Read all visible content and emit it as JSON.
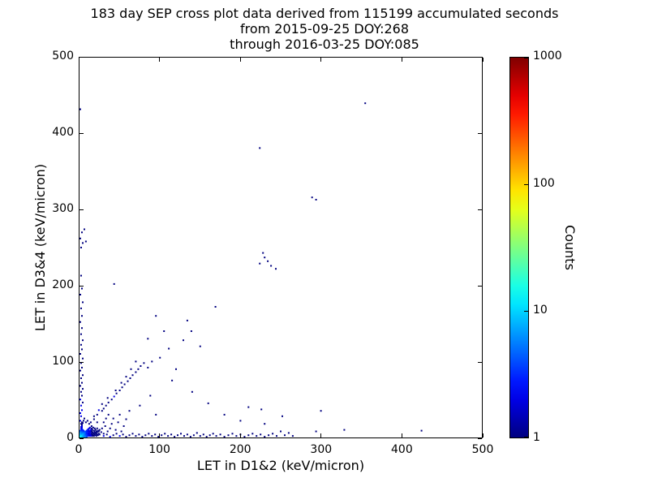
{
  "figure": {
    "title_lines": [
      "183 day SEP cross plot data derived from 115199 accumulated seconds",
      "from 2015-09-25 DOY:268",
      "through 2016-03-25 DOY:085"
    ]
  },
  "chart_data": {
    "type": "scatter",
    "title": "183 day SEP cross plot data derived from 115199 accumulated seconds from 2015-09-25 DOY:268 through 2016-03-25 DOY:085",
    "xlabel": "LET in D1&2 (keV/micron)",
    "ylabel": "LET in D3&4 (keV/micron)",
    "xlim": [
      0,
      500
    ],
    "ylim": [
      0,
      500
    ],
    "xticks": [
      0,
      100,
      200,
      300,
      400,
      500
    ],
    "yticks": [
      0,
      100,
      200,
      300,
      400,
      500
    ],
    "grid": false,
    "marker": "pixel",
    "colorbar": {
      "label": "Counts",
      "scale": "log",
      "min": 1,
      "max": 1000,
      "ticks": [
        1,
        10,
        100,
        1000
      ],
      "colormap": "jet"
    },
    "points_format": [
      "x_LET_D1_2",
      "y_LET_D3_4",
      "counts"
    ],
    "points": [
      [
        1,
        1,
        15
      ],
      [
        2,
        1,
        12
      ],
      [
        1,
        2,
        12
      ],
      [
        2,
        2,
        15
      ],
      [
        3,
        1,
        10
      ],
      [
        1,
        3,
        10
      ],
      [
        3,
        2,
        11
      ],
      [
        2,
        3,
        11
      ],
      [
        3,
        3,
        12
      ],
      [
        4,
        1,
        9
      ],
      [
        1,
        4,
        9
      ],
      [
        4,
        2,
        8
      ],
      [
        2,
        4,
        8
      ],
      [
        4,
        3,
        8
      ],
      [
        3,
        4,
        8
      ],
      [
        4,
        4,
        9
      ],
      [
        5,
        1,
        8
      ],
      [
        1,
        5,
        8
      ],
      [
        5,
        2,
        7
      ],
      [
        2,
        5,
        7
      ],
      [
        5,
        3,
        7
      ],
      [
        3,
        5,
        7
      ],
      [
        5,
        4,
        7
      ],
      [
        4,
        5,
        7
      ],
      [
        5,
        5,
        8
      ],
      [
        6,
        1,
        6
      ],
      [
        6,
        2,
        6
      ],
      [
        2,
        6,
        6
      ],
      [
        6,
        3,
        6
      ],
      [
        6,
        4,
        6
      ],
      [
        4,
        6,
        6
      ],
      [
        6,
        6,
        6
      ],
      [
        7,
        1,
        6
      ],
      [
        1,
        7,
        6
      ],
      [
        7,
        3,
        5
      ],
      [
        3,
        7,
        5
      ],
      [
        7,
        5,
        5
      ],
      [
        5,
        7,
        5
      ],
      [
        7,
        7,
        5
      ],
      [
        8,
        2,
        5
      ],
      [
        2,
        8,
        5
      ],
      [
        8,
        4,
        4
      ],
      [
        4,
        8,
        4
      ],
      [
        8,
        6,
        4
      ],
      [
        6,
        8,
        4
      ],
      [
        8,
        8,
        4
      ],
      [
        9,
        1,
        4
      ],
      [
        1,
        9,
        4
      ],
      [
        9,
        3,
        4
      ],
      [
        3,
        9,
        4
      ],
      [
        9,
        5,
        3
      ],
      [
        5,
        9,
        3
      ],
      [
        9,
        7,
        3
      ],
      [
        9,
        9,
        3
      ],
      [
        10,
        2,
        3
      ],
      [
        2,
        10,
        3
      ],
      [
        10,
        4,
        3
      ],
      [
        4,
        10,
        3
      ],
      [
        10,
        6,
        3
      ],
      [
        10,
        8,
        3
      ],
      [
        10,
        10,
        3
      ],
      [
        11,
        3,
        3
      ],
      [
        3,
        11,
        3
      ],
      [
        11,
        5,
        2
      ],
      [
        11,
        8,
        2
      ],
      [
        11,
        11,
        2
      ],
      [
        12,
        2,
        2
      ],
      [
        2,
        12,
        2
      ],
      [
        12,
        4,
        2
      ],
      [
        12,
        6,
        2
      ],
      [
        12,
        9,
        2
      ],
      [
        12,
        12,
        2
      ],
      [
        13,
        3,
        2
      ],
      [
        3,
        13,
        2
      ],
      [
        13,
        5,
        2
      ],
      [
        13,
        8,
        2
      ],
      [
        13,
        13,
        2
      ],
      [
        14,
        2,
        2
      ],
      [
        2,
        14,
        2
      ],
      [
        14,
        4,
        2
      ],
      [
        14,
        7,
        2
      ],
      [
        14,
        10,
        2
      ],
      [
        15,
        3,
        2
      ],
      [
        3,
        15,
        2
      ],
      [
        15,
        5,
        1
      ],
      [
        15,
        8,
        1
      ],
      [
        15,
        12,
        1
      ],
      [
        15,
        15,
        1
      ],
      [
        16,
        2,
        1
      ],
      [
        16,
        4,
        1
      ],
      [
        16,
        7,
        1
      ],
      [
        16,
        10,
        1
      ],
      [
        17,
        3,
        1
      ],
      [
        3,
        17,
        1
      ],
      [
        17,
        6,
        1
      ],
      [
        17,
        13,
        1
      ],
      [
        18,
        2,
        1
      ],
      [
        2,
        18,
        1
      ],
      [
        18,
        5,
        1
      ],
      [
        18,
        9,
        1
      ],
      [
        19,
        4,
        1
      ],
      [
        4,
        19,
        1
      ],
      [
        19,
        7,
        1
      ],
      [
        19,
        12,
        1
      ],
      [
        20,
        3,
        1
      ],
      [
        3,
        20,
        1
      ],
      [
        20,
        6,
        1
      ],
      [
        20,
        10,
        1
      ],
      [
        21,
        2,
        1
      ],
      [
        21,
        5,
        1
      ],
      [
        21,
        8,
        1
      ],
      [
        22,
        4,
        1
      ],
      [
        22,
        7,
        1
      ],
      [
        22,
        12,
        1
      ],
      [
        23,
        3,
        1
      ],
      [
        23,
        9,
        1
      ],
      [
        24,
        5,
        1
      ],
      [
        24,
        8,
        1
      ],
      [
        25,
        4,
        1
      ],
      [
        25,
        10,
        1
      ],
      [
        5,
        22,
        1
      ],
      [
        8,
        20,
        1
      ],
      [
        12,
        18,
        1
      ],
      [
        6,
        25,
        1
      ],
      [
        10,
        22,
        1
      ],
      [
        14,
        20,
        1
      ],
      [
        18,
        24,
        1
      ],
      [
        22,
        20,
        1
      ],
      [
        27,
        7,
        1
      ],
      [
        28,
        12,
        1
      ],
      [
        30,
        5,
        1
      ],
      [
        30,
        20,
        1
      ],
      [
        32,
        15,
        1
      ],
      [
        33,
        25,
        1
      ],
      [
        35,
        8,
        1
      ],
      [
        36,
        30,
        1
      ],
      [
        38,
        12,
        1
      ],
      [
        40,
        18,
        1
      ],
      [
        42,
        25,
        1
      ],
      [
        45,
        10,
        1
      ],
      [
        48,
        20,
        1
      ],
      [
        50,
        30,
        1
      ],
      [
        52,
        8,
        1
      ],
      [
        55,
        15,
        1
      ],
      [
        58,
        24,
        1
      ],
      [
        62,
        35,
        1
      ],
      [
        75,
        42,
        1
      ],
      [
        88,
        55,
        1
      ],
      [
        95,
        30,
        1
      ],
      [
        28,
        35,
        1
      ],
      [
        22,
        30,
        1
      ],
      [
        18,
        28,
        1
      ],
      [
        24,
        36,
        2
      ],
      [
        28,
        44,
        1
      ],
      [
        30,
        38,
        1
      ],
      [
        33,
        42,
        1
      ],
      [
        35,
        52,
        1
      ],
      [
        36,
        46,
        1
      ],
      [
        40,
        50,
        1
      ],
      [
        43,
        54,
        2
      ],
      [
        45,
        62,
        1
      ],
      [
        46,
        58,
        1
      ],
      [
        50,
        62,
        1
      ],
      [
        52,
        72,
        1
      ],
      [
        53,
        66,
        1
      ],
      [
        56,
        70,
        1
      ],
      [
        58,
        80,
        1
      ],
      [
        60,
        74,
        1
      ],
      [
        63,
        78,
        1
      ],
      [
        64,
        90,
        1
      ],
      [
        66,
        82,
        1
      ],
      [
        70,
        86,
        1
      ],
      [
        70,
        100,
        1
      ],
      [
        73,
        90,
        1
      ],
      [
        76,
        94,
        1
      ],
      [
        80,
        98,
        1
      ],
      [
        85,
        92,
        1
      ],
      [
        90,
        100,
        1
      ],
      [
        1,
        22,
        2
      ],
      [
        2,
        28,
        2
      ],
      [
        1,
        32,
        2
      ],
      [
        3,
        36,
        2
      ],
      [
        2,
        42,
        2
      ],
      [
        4,
        46,
        1
      ],
      [
        1,
        50,
        2
      ],
      [
        3,
        55,
        1
      ],
      [
        2,
        60,
        1
      ],
      [
        4,
        64,
        1
      ],
      [
        1,
        68,
        1
      ],
      [
        3,
        72,
        1
      ],
      [
        2,
        78,
        1
      ],
      [
        4,
        82,
        1
      ],
      [
        1,
        88,
        1
      ],
      [
        3,
        92,
        1
      ],
      [
        2,
        98,
        1
      ],
      [
        4,
        104,
        1
      ],
      [
        1,
        110,
        1
      ],
      [
        3,
        116,
        1
      ],
      [
        2,
        122,
        1
      ],
      [
        4,
        128,
        1
      ],
      [
        2,
        136,
        1
      ],
      [
        3,
        144,
        1
      ],
      [
        1,
        152,
        1
      ],
      [
        3,
        160,
        1
      ],
      [
        2,
        170,
        1
      ],
      [
        4,
        178,
        1
      ],
      [
        1,
        188,
        1
      ],
      [
        3,
        196,
        1
      ],
      [
        2,
        213,
        1
      ],
      [
        2,
        250,
        1
      ],
      [
        4,
        256,
        1
      ],
      [
        1,
        262,
        1
      ],
      [
        3,
        270,
        1
      ],
      [
        6,
        274,
        1
      ],
      [
        8,
        258,
        1
      ],
      [
        1,
        432,
        1
      ],
      [
        30,
        2,
        2
      ],
      [
        34,
        4,
        1
      ],
      [
        38,
        1,
        2
      ],
      [
        42,
        3,
        1
      ],
      [
        46,
        5,
        1
      ],
      [
        50,
        2,
        2
      ],
      [
        54,
        4,
        1
      ],
      [
        58,
        1,
        1
      ],
      [
        62,
        3,
        1
      ],
      [
        66,
        5,
        1
      ],
      [
        70,
        2,
        1
      ],
      [
        74,
        4,
        1
      ],
      [
        78,
        1,
        1
      ],
      [
        82,
        3,
        1
      ],
      [
        86,
        5,
        1
      ],
      [
        90,
        2,
        1
      ],
      [
        94,
        4,
        1
      ],
      [
        98,
        1,
        1
      ],
      [
        102,
        3,
        1
      ],
      [
        106,
        5,
        1
      ],
      [
        110,
        2,
        1
      ],
      [
        114,
        4,
        1
      ],
      [
        118,
        1,
        1
      ],
      [
        122,
        3,
        1
      ],
      [
        126,
        5,
        1
      ],
      [
        130,
        2,
        1
      ],
      [
        134,
        4,
        1
      ],
      [
        138,
        1,
        1
      ],
      [
        142,
        3,
        1
      ],
      [
        146,
        6,
        1
      ],
      [
        150,
        2,
        1
      ],
      [
        154,
        4,
        1
      ],
      [
        158,
        1,
        1
      ],
      [
        162,
        3,
        1
      ],
      [
        166,
        5,
        1
      ],
      [
        170,
        2,
        1
      ],
      [
        175,
        4,
        1
      ],
      [
        180,
        1,
        1
      ],
      [
        185,
        3,
        1
      ],
      [
        190,
        5,
        1
      ],
      [
        195,
        2,
        1
      ],
      [
        200,
        4,
        1
      ],
      [
        205,
        1,
        1
      ],
      [
        210,
        3,
        1
      ],
      [
        215,
        5,
        1
      ],
      [
        220,
        2,
        1
      ],
      [
        225,
        4,
        1
      ],
      [
        230,
        1,
        1
      ],
      [
        235,
        3,
        1
      ],
      [
        240,
        5,
        1
      ],
      [
        245,
        2,
        1
      ],
      [
        250,
        8,
        1
      ],
      [
        255,
        3,
        1
      ],
      [
        260,
        6,
        1
      ],
      [
        265,
        2,
        1
      ],
      [
        294,
        8,
        1
      ],
      [
        300,
        35,
        1
      ],
      [
        329,
        10,
        1
      ],
      [
        425,
        9,
        1
      ],
      [
        95,
        160,
        1
      ],
      [
        100,
        105,
        1
      ],
      [
        105,
        140,
        1
      ],
      [
        111,
        117,
        1
      ],
      [
        115,
        75,
        1
      ],
      [
        120,
        90,
        1
      ],
      [
        129,
        128,
        1
      ],
      [
        134,
        154,
        1
      ],
      [
        139,
        140,
        1
      ],
      [
        140,
        60,
        1
      ],
      [
        150,
        120,
        1
      ],
      [
        160,
        45,
        1
      ],
      [
        169,
        172,
        1
      ],
      [
        180,
        30,
        1
      ],
      [
        200,
        22,
        1
      ],
      [
        210,
        40,
        1
      ],
      [
        226,
        37,
        1
      ],
      [
        230,
        18,
        1
      ],
      [
        252,
        28,
        1
      ],
      [
        85,
        130,
        1
      ],
      [
        43,
        202,
        1
      ],
      [
        224,
        229,
        1
      ],
      [
        230,
        237,
        1
      ],
      [
        234,
        232,
        1
      ],
      [
        228,
        243,
        1
      ],
      [
        238,
        226,
        1
      ],
      [
        244,
        222,
        1
      ],
      [
        224,
        381,
        1
      ],
      [
        289,
        316,
        1
      ],
      [
        294,
        313,
        1
      ],
      [
        355,
        440,
        1
      ]
    ]
  }
}
